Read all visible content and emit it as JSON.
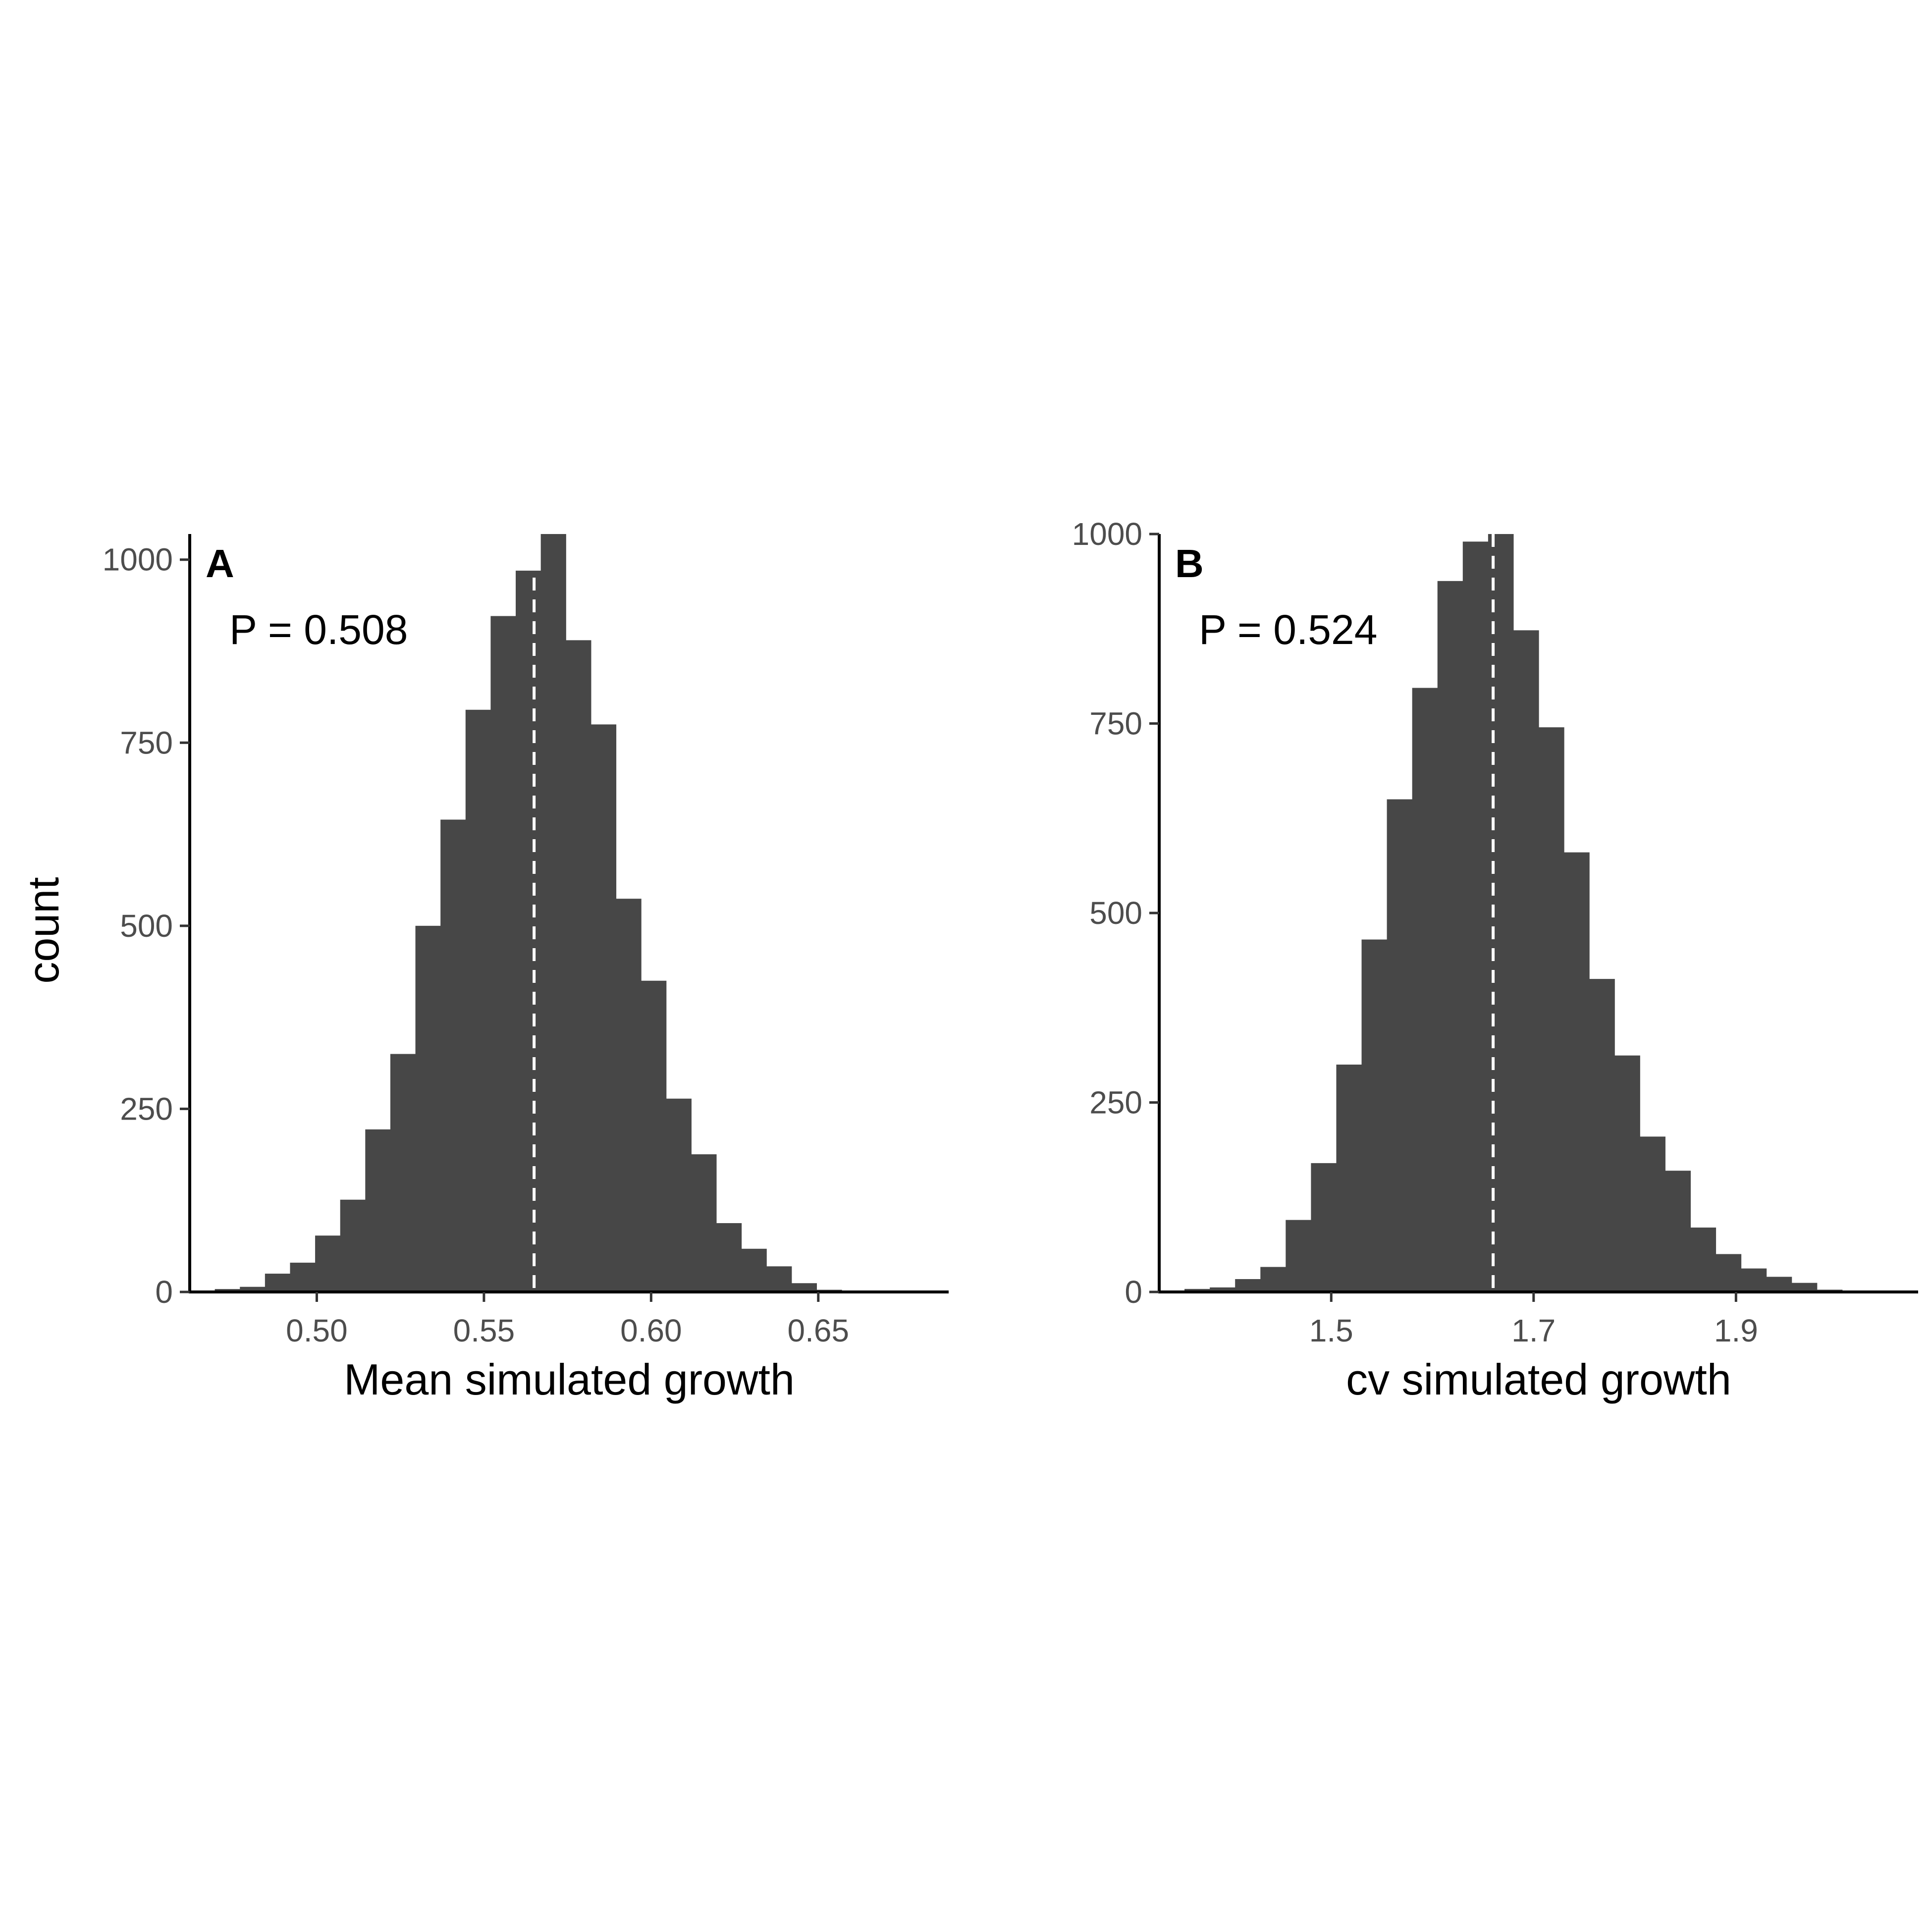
{
  "shared": {
    "ylabel": "count",
    "bar_color": "#474747",
    "ref_line_color": "#ffffff",
    "axis_color": "#000000"
  },
  "chart_data": [
    {
      "type": "bar",
      "panel": "A",
      "annotation": "P = 0.508",
      "xlabel": "Mean simulated growth",
      "xlim": [
        0.462,
        0.689
      ],
      "ylim": [
        0,
        1035
      ],
      "xticks": [
        {
          "value": 0.5,
          "label": "0.50"
        },
        {
          "value": 0.55,
          "label": "0.55"
        },
        {
          "value": 0.6,
          "label": "0.60"
        },
        {
          "value": 0.65,
          "label": "0.65"
        }
      ],
      "yticks": [
        {
          "value": 0,
          "label": "0"
        },
        {
          "value": 250,
          "label": "250"
        },
        {
          "value": 500,
          "label": "500"
        },
        {
          "value": 750,
          "label": "750"
        },
        {
          "value": 1000,
          "label": "1000"
        }
      ],
      "bin_start": 0.4695,
      "bin_width": 0.0075,
      "values": [
        4,
        7,
        25,
        40,
        77,
        126,
        222,
        325,
        500,
        645,
        795,
        923,
        985,
        1035,
        890,
        775,
        537,
        425,
        264,
        188,
        94,
        59,
        35,
        12,
        3,
        1,
        1
      ],
      "ref_line": 0.565
    },
    {
      "type": "bar",
      "panel": "B",
      "annotation": "P = 0.524",
      "xlabel": "cv simulated growth",
      "xlim": [
        1.33,
        2.08
      ],
      "ylim": [
        0,
        1000
      ],
      "xticks": [
        {
          "value": 1.5,
          "label": "1.5"
        },
        {
          "value": 1.7,
          "label": "1.7"
        },
        {
          "value": 1.9,
          "label": "1.9"
        }
      ],
      "yticks": [
        {
          "value": 0,
          "label": "0"
        },
        {
          "value": 250,
          "label": "250"
        },
        {
          "value": 500,
          "label": "500"
        },
        {
          "value": 750,
          "label": "750"
        },
        {
          "value": 1000,
          "label": "1000"
        }
      ],
      "bin_start": 1.355,
      "bin_width": 0.025,
      "values": [
        4,
        6,
        17,
        33,
        95,
        170,
        300,
        465,
        650,
        797,
        938,
        990,
        1000,
        873,
        745,
        580,
        413,
        312,
        205,
        160,
        85,
        50,
        31,
        20,
        12,
        3,
        1
      ],
      "ref_line": 1.66
    }
  ]
}
